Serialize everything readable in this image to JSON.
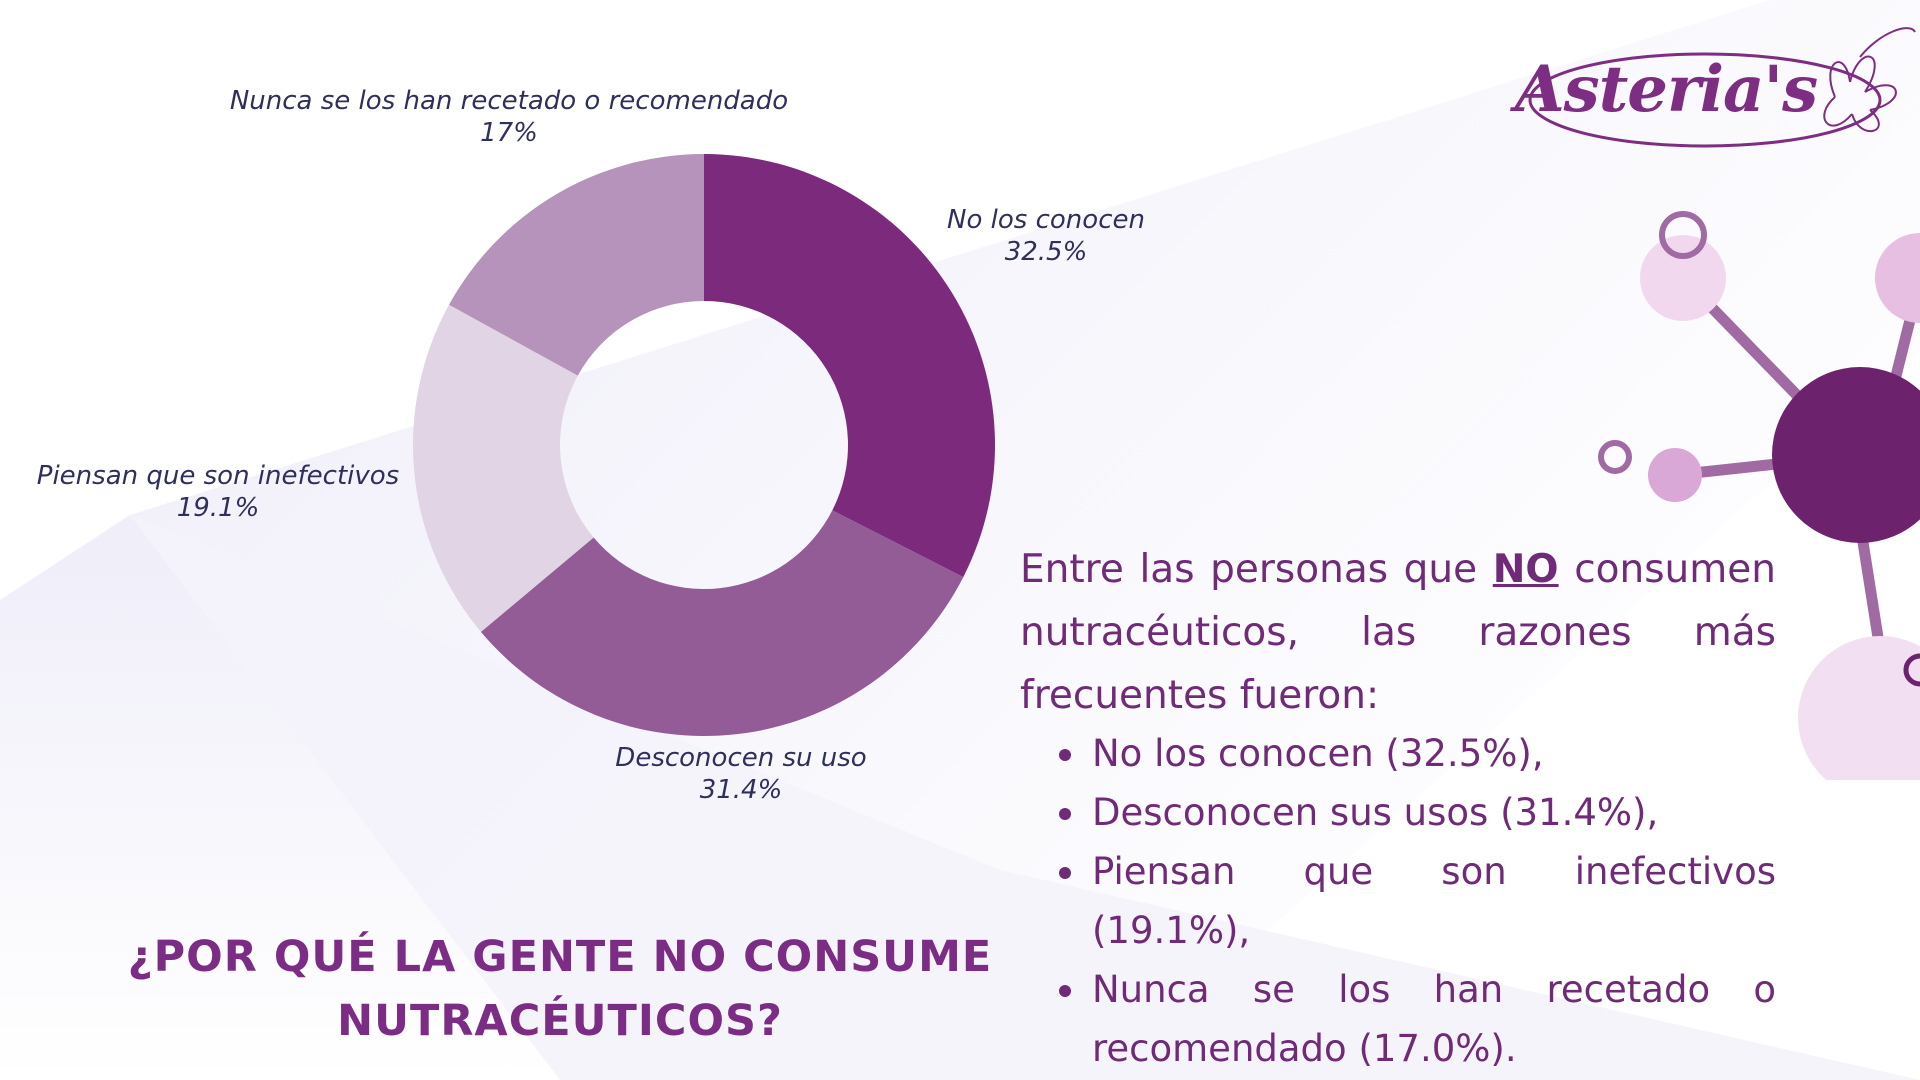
{
  "brand": {
    "logo_text": "Asteria's"
  },
  "colors": {
    "accent": "#7b2c84",
    "slice_1": "#7b2a7c",
    "slice_2": "#935c96",
    "slice_3": "#e1d4e4",
    "slice_4": "#b693bb",
    "molecule_core": "#6d226e",
    "molecule_node": "#d9a8d6"
  },
  "chart_data": {
    "type": "pie",
    "donut": true,
    "labels": [
      "No los conocen",
      "Desconocen su uso",
      "Piensan que son inefectivos",
      "Nunca se los han recetado o recomendado"
    ],
    "values": [
      32.5,
      31.4,
      19.1,
      17
    ],
    "value_labels": [
      "32.5%",
      "31.4%",
      "19.1%",
      "17%"
    ]
  },
  "summary": {
    "intro_before": "Entre las personas que ",
    "intro_emphasis": "NO",
    "intro_after": " consumen nutracéuticos, las razones más frecuentes fueron:",
    "bullets": [
      "No los conocen (32.5%),",
      "Desconocen sus usos (31.4%),",
      "Piensan que son inefectivos (19.1%),",
      "Nunca se los han recetado o recomendado (17.0%)."
    ]
  },
  "question": "¿POR QUÉ LA GENTE NO CONSUME NUTRACÉUTICOS?"
}
